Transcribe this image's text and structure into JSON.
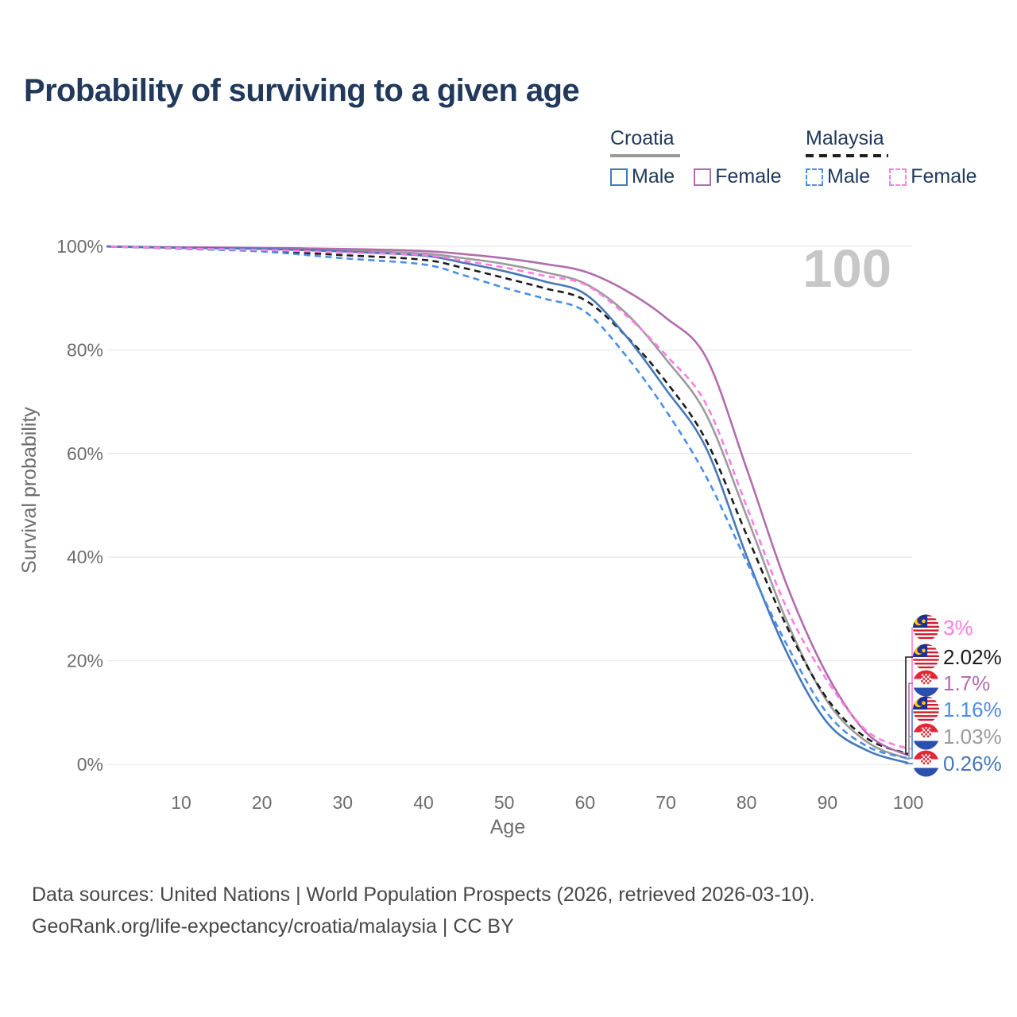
{
  "title": "Probability of surviving to a given age",
  "watermark": "100",
  "legend": {
    "groups": [
      {
        "label": "Croatia",
        "line_style": "solid",
        "underline_color": "#9a9a9a",
        "items": [
          {
            "label": "Male",
            "color": "#4678b8"
          },
          {
            "label": "Female",
            "color": "#b16dad"
          }
        ]
      },
      {
        "label": "Malaysia",
        "line_style": "dashed",
        "underline_color": "#1f1f1f",
        "items": [
          {
            "label": "Male",
            "color": "#4a8eea"
          },
          {
            "label": "Female",
            "color": "#ff7de2"
          }
        ]
      }
    ]
  },
  "chart_data": {
    "type": "line",
    "title": "Probability of surviving to a given age",
    "xlabel": "Age",
    "ylabel": "Survival probability",
    "xlim": [
      0,
      100
    ],
    "ylim": [
      0,
      100
    ],
    "grid": "horizontal",
    "x_ticks": [
      10,
      20,
      30,
      40,
      50,
      60,
      70,
      80,
      90,
      100
    ],
    "y_ticks": [
      {
        "value": 100,
        "label": "100%"
      },
      {
        "value": 80,
        "label": "80%"
      },
      {
        "value": 60,
        "label": "60%"
      },
      {
        "value": 40,
        "label": "40%"
      },
      {
        "value": 20,
        "label": "20%"
      },
      {
        "value": 0,
        "label": "0%"
      }
    ],
    "ages": [
      0,
      10,
      20,
      30,
      40,
      45,
      50,
      55,
      60,
      65,
      70,
      75,
      80,
      85,
      90,
      95,
      100
    ],
    "series": [
      {
        "id": "croatia-all",
        "country": "Croatia",
        "sex": "All",
        "flag": "croatia",
        "color": "#9b9b9b",
        "dashed": false,
        "values": [
          100,
          99.7,
          99.6,
          99.2,
          98.6,
          97.7,
          96.6,
          95.0,
          92.8,
          87.2,
          78.2,
          67.5,
          47.9,
          27.5,
          12.1,
          4.2,
          1.03
        ],
        "end_label": "1.03%"
      },
      {
        "id": "malaysia-all",
        "country": "Malaysia",
        "sex": "All",
        "flag": "malaysia",
        "color": "#1c1c1c",
        "dashed": true,
        "values": [
          100,
          99.6,
          99.1,
          98.3,
          97.4,
          95.8,
          93.9,
          91.9,
          89.6,
          82.8,
          73.9,
          62.5,
          44.3,
          26.5,
          12.6,
          4.9,
          2.02
        ],
        "end_label": "2.02%"
      },
      {
        "id": "croatia-female",
        "country": "Croatia",
        "sex": "Female",
        "flag": "croatia",
        "color": "#b16dad",
        "dashed": false,
        "values": [
          100,
          99.8,
          99.7,
          99.5,
          99.1,
          98.5,
          97.7,
          96.6,
          95.1,
          91.5,
          86.2,
          78.5,
          57.1,
          34.5,
          17.2,
          5.8,
          1.7
        ],
        "end_label": "1.7%"
      },
      {
        "id": "croatia-male",
        "country": "Croatia",
        "sex": "Male",
        "flag": "croatia",
        "color": "#4678b8",
        "dashed": false,
        "values": [
          100,
          99.7,
          99.5,
          99.0,
          98.2,
          96.8,
          95.2,
          93.2,
          90.8,
          82.8,
          72.4,
          61.0,
          40.2,
          21.5,
          8.0,
          2.6,
          0.26
        ],
        "end_label": "0.26%"
      },
      {
        "id": "malaysia-male",
        "country": "Malaysia",
        "sex": "Male",
        "flag": "malaysia",
        "color": "#4a8eea",
        "dashed": true,
        "values": [
          100,
          99.5,
          99.0,
          97.7,
          96.5,
          94.4,
          92.0,
          89.9,
          87.4,
          79.0,
          68.3,
          55.5,
          39.1,
          23.0,
          9.8,
          3.4,
          1.16
        ],
        "end_label": "1.16%"
      },
      {
        "id": "malaysia-female",
        "country": "Malaysia",
        "sex": "Female",
        "flag": "malaysia",
        "color": "#ff7de2",
        "dashed": true,
        "values": [
          100,
          99.6,
          99.3,
          98.8,
          98.3,
          97.2,
          95.9,
          94.3,
          92.6,
          86.8,
          79.0,
          69.5,
          49.8,
          30.0,
          16.1,
          6.3,
          3.0
        ],
        "end_label": "3%"
      }
    ]
  },
  "footer": {
    "line1": "Data sources: United Nations | World Population Prospects (2026, retrieved 2026-03-10).",
    "line2": "GeoRank.org/life-expectancy/croatia/malaysia | CC BY"
  }
}
